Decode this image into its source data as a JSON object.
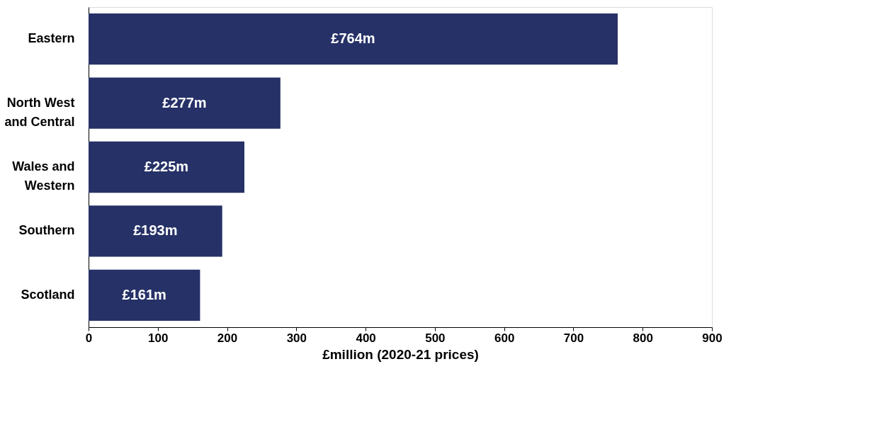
{
  "chart_data": {
    "type": "bar",
    "orientation": "horizontal",
    "categories": [
      "Eastern",
      "North West\nand Central",
      "Wales and\nWestern",
      "Southern",
      "Scotland"
    ],
    "values": [
      764,
      277,
      225,
      193,
      161
    ],
    "value_labels": [
      "£764m",
      "£277m",
      "£225m",
      "£193m",
      "£161m"
    ],
    "color": "#263167",
    "xlabel": "£million (2020-21 prices)",
    "xlim": [
      0,
      900
    ],
    "xticks": [
      0,
      100,
      200,
      300,
      400,
      500,
      600,
      700,
      800,
      900
    ],
    "grid": false
  }
}
